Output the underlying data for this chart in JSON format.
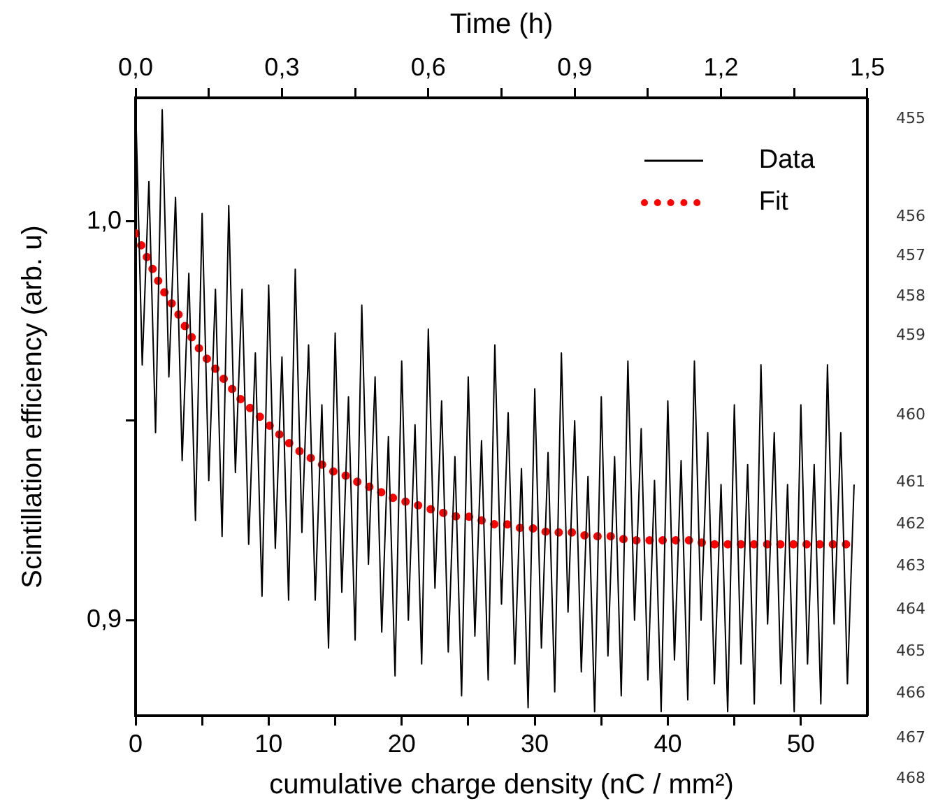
{
  "chart_data": {
    "type": "line",
    "xlabel": "cumulative charge density (nC / mm²)",
    "ylabel": "Scintillation efficiency (arb. u)",
    "x2label": "Time (h)",
    "xlim": [
      0,
      55
    ],
    "xticks": [
      0,
      {
        "value": 5,
        "label": null
      },
      10,
      {
        "value": 15,
        "label": null
      },
      20,
      {
        "value": 25,
        "label": null
      },
      30,
      {
        "value": 35,
        "label": null
      },
      40,
      {
        "value": 45,
        "label": null
      },
      50
    ],
    "x2lim": [
      0,
      1.5
    ],
    "x2ticks": [
      {
        "value": 0,
        "label": "0,0"
      },
      {
        "value": 0.15,
        "label": null
      },
      {
        "value": 0.3,
        "label": "0,3"
      },
      {
        "value": 0.45,
        "label": null
      },
      {
        "value": 0.6,
        "label": "0,6"
      },
      {
        "value": 0.75,
        "label": null
      },
      {
        "value": 0.9,
        "label": "0,9"
      },
      {
        "value": 1.05,
        "label": null
      },
      {
        "value": 1.2,
        "label": "1,2"
      },
      {
        "value": 1.35,
        "label": null
      },
      {
        "value": 1.5,
        "label": "1,5"
      }
    ],
    "ylim": [
      0.876,
      1.031
    ],
    "yticks": [
      {
        "value": 0.9,
        "label": "0,9"
      },
      {
        "value": 0.95,
        "label": null
      },
      {
        "value": 1.0,
        "label": "1,0"
      }
    ],
    "grid": false,
    "legend": "top right",
    "annotations": [
      "455",
      "456",
      "457",
      "458",
      "459",
      "460",
      "461",
      "462",
      "463",
      "464",
      "465",
      "466",
      "467",
      "468"
    ],
    "series": [
      {
        "name": "Data",
        "color": "#000000",
        "line_style": "solid",
        "x": [
          0,
          0.5,
          1,
          1.5,
          2,
          2.5,
          3,
          3.5,
          4,
          4.5,
          5,
          5.5,
          6,
          6.5,
          7,
          7.5,
          8,
          8.5,
          9,
          9.5,
          10,
          10.5,
          11,
          11.5,
          12,
          12.5,
          13,
          13.5,
          14,
          14.5,
          15,
          15.5,
          16,
          16.5,
          17,
          17.5,
          18,
          18.5,
          19,
          19.5,
          20,
          20.5,
          21,
          21.5,
          22,
          22.5,
          23,
          23.5,
          24,
          24.5,
          25,
          25.5,
          26,
          26.5,
          27,
          27.5,
          28,
          28.5,
          29,
          29.5,
          30,
          30.5,
          31,
          31.5,
          32,
          32.5,
          33,
          33.5,
          34,
          34.5,
          35,
          35.5,
          36,
          36.5,
          37,
          37.5,
          38,
          38.5,
          39,
          39.5,
          40,
          40.5,
          41,
          41.5,
          42,
          42.5,
          43,
          43.5,
          44,
          44.5,
          45,
          45.5,
          46,
          46.5,
          47,
          47.5,
          48,
          48.5,
          49,
          49.5,
          50,
          50.5,
          51,
          51.5,
          52,
          52.5,
          53,
          53.5,
          54
        ],
        "values": [
          1.03,
          0.964,
          1.01,
          0.947,
          1.028,
          0.961,
          1.006,
          0.94,
          0.987,
          0.925,
          1.002,
          0.935,
          0.983,
          0.921,
          1.004,
          0.937,
          0.983,
          0.919,
          0.967,
          0.906,
          0.984,
          0.918,
          0.966,
          0.905,
          0.988,
          0.922,
          0.969,
          0.905,
          0.954,
          0.893,
          0.972,
          0.907,
          0.956,
          0.895,
          0.979,
          0.914,
          0.961,
          0.897,
          0.946,
          0.886,
          0.965,
          0.9,
          0.949,
          0.889,
          0.973,
          0.908,
          0.955,
          0.892,
          0.941,
          0.881,
          0.961,
          0.896,
          0.945,
          0.885,
          0.969,
          0.904,
          0.952,
          0.889,
          0.938,
          0.878,
          0.958,
          0.893,
          0.942,
          0.882,
          0.967,
          0.902,
          0.95,
          0.887,
          0.936,
          0.877,
          0.956,
          0.891,
          0.941,
          0.881,
          0.965,
          0.9,
          0.948,
          0.885,
          0.935,
          0.877,
          0.955,
          0.89,
          0.94,
          0.88,
          0.965,
          0.9,
          0.947,
          0.884,
          0.934,
          0.877,
          0.954,
          0.889,
          0.939,
          0.879,
          0.964,
          0.899,
          0.947,
          0.884,
          0.934,
          0.877,
          0.954,
          0.889,
          0.939,
          0.879,
          0.964,
          0.899,
          0.947,
          0.884,
          0.934
        ]
      },
      {
        "name": "Fit",
        "color": "#ff0000",
        "line_style": "dotted",
        "x": [
          0,
          1,
          2,
          3,
          4,
          5,
          6,
          7,
          8,
          9,
          10,
          11,
          12,
          13,
          14,
          15,
          16,
          17,
          18,
          19,
          20,
          21,
          22,
          23,
          24,
          25,
          26,
          27,
          28,
          29,
          30,
          31,
          32,
          33,
          34,
          35,
          36,
          37,
          38,
          39,
          40,
          41,
          42,
          43,
          44,
          45,
          46,
          47,
          48,
          49,
          50,
          51,
          52,
          53,
          54
        ],
        "values": [
          0.997,
          0.99,
          0.983,
          0.978,
          0.972,
          0.967,
          0.963,
          0.959,
          0.955,
          0.952,
          0.949,
          0.946,
          0.943,
          0.941,
          0.939,
          0.937,
          0.936,
          0.934,
          0.933,
          0.931,
          0.93,
          0.929,
          0.928,
          0.927,
          0.926,
          0.926,
          0.925,
          0.924,
          0.924,
          0.923,
          0.923,
          0.922,
          0.922,
          0.922,
          0.921,
          0.921,
          0.921,
          0.92,
          0.92,
          0.92,
          0.92,
          0.92,
          0.92,
          0.919,
          0.919,
          0.919,
          0.919,
          0.919,
          0.919,
          0.919,
          0.919,
          0.919,
          0.919,
          0.919,
          0.919
        ]
      }
    ]
  }
}
